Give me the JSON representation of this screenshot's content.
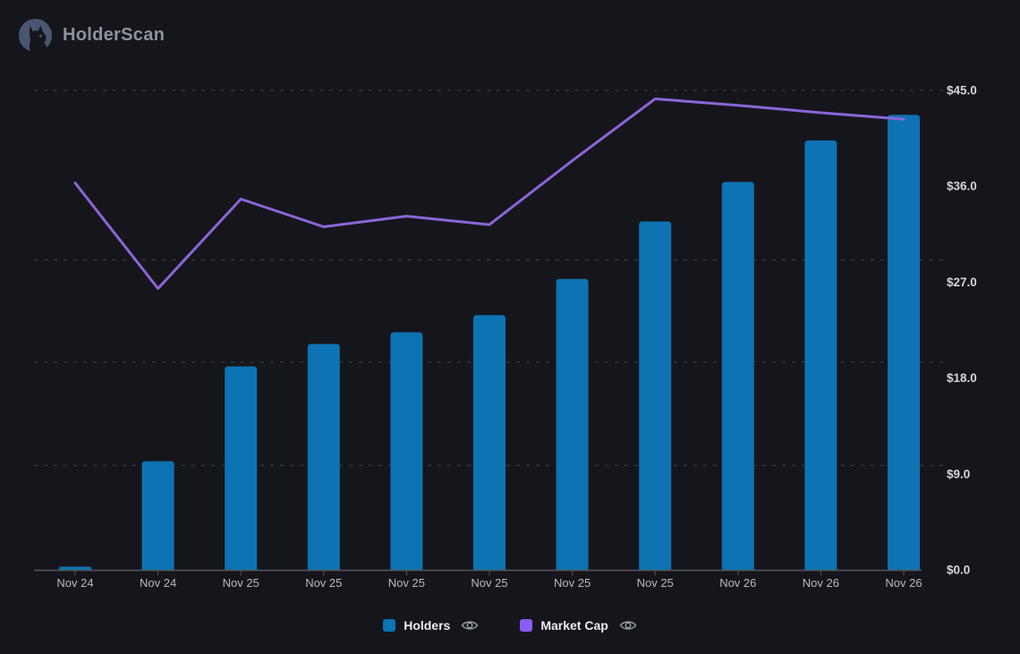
{
  "app": {
    "title": "HolderScan",
    "logo_icon": "cat-logo"
  },
  "colors": {
    "background": "#15161b",
    "bar_blue": "#0d73b2",
    "line_purple": "#8a66d6",
    "legend_purple": "#8b5cf6",
    "gridline": "#43444a",
    "axis": "#54565c",
    "y_label_text": "#d3d6db",
    "x_label_text": "#b6bac2",
    "logo_circle": "#4a5571"
  },
  "chart_data": {
    "type": "bar+line",
    "title": "",
    "categories": [
      "Nov 24",
      "Nov 24",
      "Nov 25",
      "Nov 25",
      "Nov 25",
      "Nov 25",
      "Nov 25",
      "Nov 25",
      "Nov 26",
      "Nov 26",
      "Nov 26"
    ],
    "series": [
      {
        "name": "Holders",
        "type": "bar",
        "color": "#0d73b2",
        "axis": "left (hidden)",
        "values_on_right_axis_scale": [
          0.3,
          10.2,
          19.1,
          21.2,
          22.3,
          23.9,
          27.3,
          32.7,
          36.4,
          40.3,
          42.7
        ]
      },
      {
        "name": "Market Cap",
        "type": "line",
        "color": "#8a66d6",
        "axis": "right",
        "values": [
          36.3,
          26.4,
          34.8,
          32.2,
          33.2,
          32.4,
          38.4,
          44.2,
          43.6,
          42.9,
          42.3
        ]
      }
    ],
    "y_axis": {
      "side": "right",
      "min": 0,
      "max": 45,
      "tick_values": [
        45,
        36,
        27,
        18,
        9,
        0
      ],
      "tick_labels": [
        "$45.0",
        "$36.0",
        "$27.0",
        "$18.0",
        "$9.0",
        "$0.0"
      ]
    },
    "gridline_values": [
      45.0,
      29.1,
      19.5,
      9.8
    ],
    "grid": "dashed horizontal",
    "legend": {
      "position": "bottom-center",
      "items": [
        {
          "label": "Holders",
          "color": "#0d73b2",
          "eye_icon": true
        },
        {
          "label": "Market Cap",
          "color": "#8b5cf6",
          "eye_icon": true
        }
      ]
    }
  }
}
